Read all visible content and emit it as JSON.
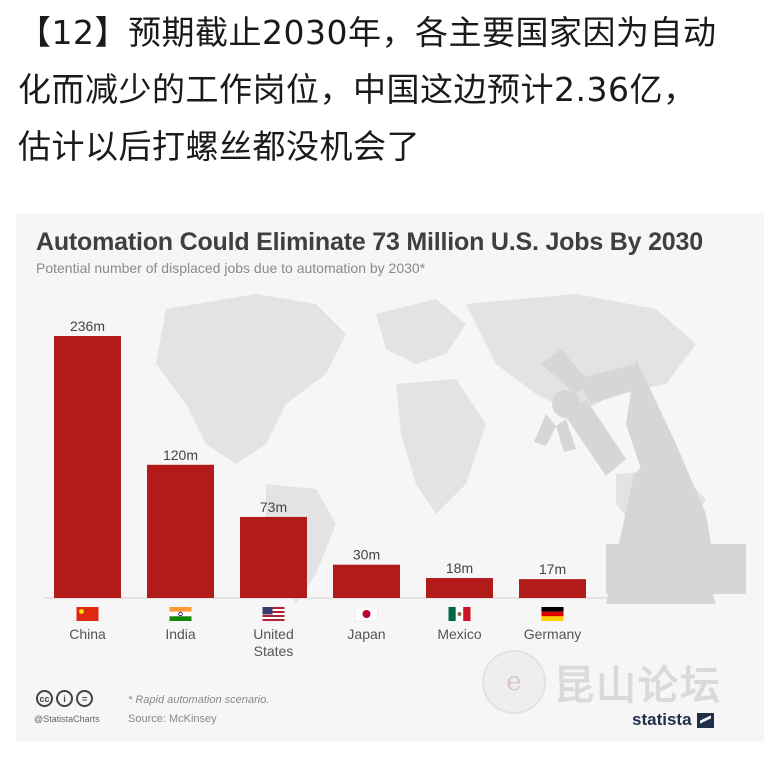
{
  "post": {
    "lines": [
      "【12】预期截止2030年，各主要国家因为自动",
      "化而减少的工作岗位，中国这边预计2.36亿，",
      "估计以后打螺丝都没机会了"
    ]
  },
  "chart_data": {
    "type": "bar",
    "title": "Automation Could Eliminate 73 Million U.S. Jobs By 2030",
    "subtitle": "Potential number of displaced jobs due to automation by 2030*",
    "categories": [
      "China",
      "India",
      "United States",
      "Japan",
      "Mexico",
      "Germany"
    ],
    "category_lines": [
      [
        "China"
      ],
      [
        "India"
      ],
      [
        "United",
        "States"
      ],
      [
        "Japan"
      ],
      [
        "Mexico"
      ],
      [
        "Germany"
      ]
    ],
    "values": [
      236,
      120,
      73,
      30,
      18,
      17
    ],
    "data_labels": [
      "236m",
      "120m",
      "73m",
      "30m",
      "18m",
      "17m"
    ],
    "unit": "m",
    "ylim": [
      0,
      236
    ],
    "bar_color": "#b31b1b",
    "legend": "none",
    "grid": false,
    "flag_icons": [
      "flag-china-icon",
      "flag-india-icon",
      "flag-usa-icon",
      "flag-japan-icon",
      "flag-mexico-icon",
      "flag-germany-icon"
    ]
  },
  "footer": {
    "license_icons": [
      "cc",
      "i",
      "="
    ],
    "handle": "@StatistaCharts",
    "note": "* Rapid automation scenario.",
    "source": "Source: McKinsey",
    "brand": "statista"
  },
  "watermark": {
    "logo_glyph": "e",
    "text": "昆山论坛"
  }
}
